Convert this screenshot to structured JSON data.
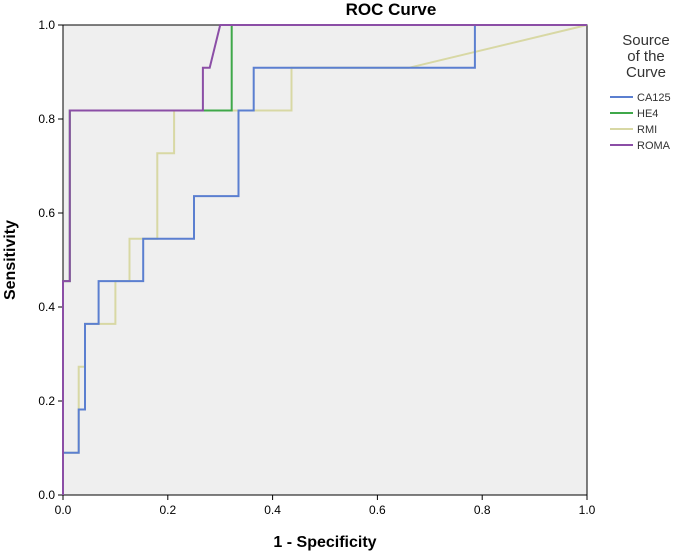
{
  "chart_data": {
    "type": "line",
    "title": "ROC Curve",
    "xlabel": "1 - Specificity",
    "ylabel": "Sensitivity",
    "xlim": [
      0,
      1
    ],
    "ylim": [
      0,
      1
    ],
    "xticks": [
      "0.0",
      "0.2",
      "0.4",
      "0.6",
      "0.8",
      "1.0"
    ],
    "yticks": [
      "0.0",
      "0.2",
      "0.4",
      "0.6",
      "0.8",
      "1.0"
    ],
    "grid": false,
    "legend": {
      "title": [
        "Source",
        "of the",
        "Curve"
      ],
      "placement": "right"
    },
    "series": [
      {
        "name": "CA125",
        "color": "#5b7fd0",
        "points": [
          [
            0,
            0
          ],
          [
            0,
            0.09
          ],
          [
            0.03,
            0.09
          ],
          [
            0.03,
            0.182
          ],
          [
            0.042,
            0.182
          ],
          [
            0.042,
            0.273
          ],
          [
            0.042,
            0.364
          ],
          [
            0.068,
            0.364
          ],
          [
            0.068,
            0.455
          ],
          [
            0.153,
            0.455
          ],
          [
            0.153,
            0.545
          ],
          [
            0.25,
            0.545
          ],
          [
            0.25,
            0.636
          ],
          [
            0.335,
            0.636
          ],
          [
            0.335,
            0.818
          ],
          [
            0.364,
            0.818
          ],
          [
            0.364,
            0.909
          ],
          [
            0.786,
            0.909
          ],
          [
            0.786,
            1
          ],
          [
            1,
            1
          ]
        ]
      },
      {
        "name": "HE4",
        "color": "#3fa84a",
        "points": [
          [
            0,
            0
          ],
          [
            0,
            0.455
          ],
          [
            0.013,
            0.455
          ],
          [
            0.013,
            0.818
          ],
          [
            0.322,
            0.818
          ],
          [
            0.322,
            1
          ],
          [
            1,
            1
          ]
        ]
      },
      {
        "name": "RMI",
        "color": "#d8d8a4",
        "points": [
          [
            0,
            0
          ],
          [
            0,
            0.09
          ],
          [
            0.03,
            0.09
          ],
          [
            0.03,
            0.273
          ],
          [
            0.042,
            0.273
          ],
          [
            0.042,
            0.364
          ],
          [
            0.1,
            0.364
          ],
          [
            0.1,
            0.455
          ],
          [
            0.127,
            0.455
          ],
          [
            0.127,
            0.545
          ],
          [
            0.18,
            0.545
          ],
          [
            0.18,
            0.727
          ],
          [
            0.212,
            0.727
          ],
          [
            0.212,
            0.818
          ],
          [
            0.436,
            0.818
          ],
          [
            0.436,
            0.909
          ],
          [
            0.66,
            0.909
          ],
          [
            1,
            1
          ]
        ]
      },
      {
        "name": "ROMA",
        "color": "#8b4ea6",
        "points": [
          [
            0,
            0
          ],
          [
            0,
            0.455
          ],
          [
            0.013,
            0.455
          ],
          [
            0.013,
            0.818
          ],
          [
            0.267,
            0.818
          ],
          [
            0.267,
            0.909
          ],
          [
            0.28,
            0.909
          ],
          [
            0.3,
            1
          ],
          [
            1,
            1
          ]
        ]
      }
    ]
  }
}
